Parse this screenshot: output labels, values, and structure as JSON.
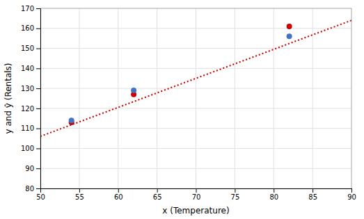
{
  "chart_data": {
    "type": "scatter",
    "xlabel": "x (Temperature)",
    "ylabel": "y and ŷ (Rentals)",
    "xlim": [
      50,
      90
    ],
    "ylim": [
      80,
      170
    ],
    "xticks": [
      50,
      55,
      60,
      65,
      70,
      75,
      80,
      85,
      90
    ],
    "yticks": [
      80,
      90,
      100,
      110,
      120,
      130,
      140,
      150,
      160,
      170
    ],
    "grid": true,
    "series": [
      {
        "type": "line",
        "line_style": "dotted",
        "color": "#CC0000",
        "x": [
          50,
          90
        ],
        "values": [
          106,
          164
        ]
      },
      {
        "type": "scatter",
        "color": "#CC0000",
        "x": [
          54,
          62,
          82
        ],
        "values": [
          113,
          127,
          161
        ]
      },
      {
        "type": "scatter",
        "color": "#4472C4",
        "x": [
          54,
          62,
          82
        ],
        "values": [
          114,
          129,
          156
        ]
      }
    ]
  }
}
